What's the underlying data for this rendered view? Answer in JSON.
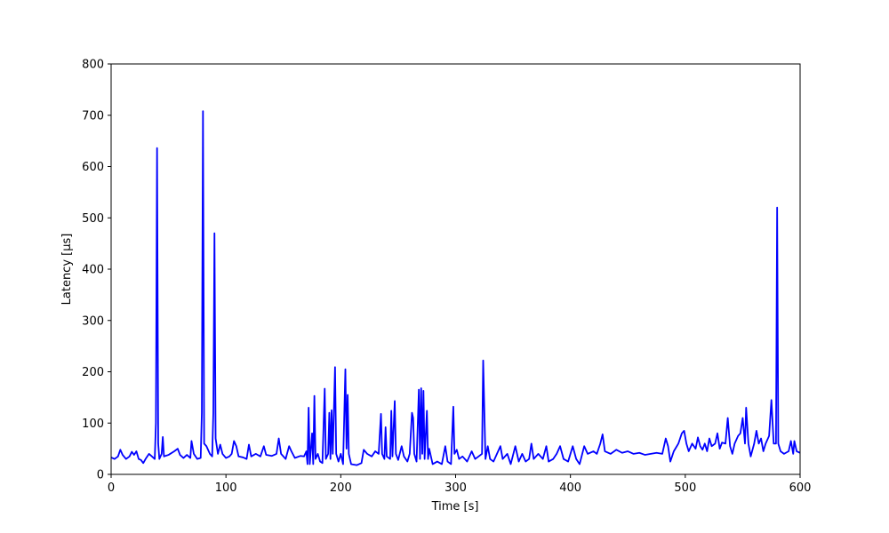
{
  "chart_data": {
    "type": "line",
    "xlabel": "Time [s]",
    "ylabel": "Latency [µs]",
    "color": "#0000ff",
    "xlim": [
      0,
      600
    ],
    "xticks": [
      0,
      100,
      200,
      300,
      400,
      500,
      600
    ],
    "ylim": [
      0,
      800
    ],
    "yticks": [
      0,
      100,
      200,
      300,
      400,
      500,
      600,
      700,
      800
    ],
    "grid": false,
    "x": [
      0,
      3,
      6,
      8,
      10,
      13,
      16,
      18,
      20,
      22,
      24,
      26,
      28,
      30,
      33,
      35,
      37,
      38,
      39,
      40,
      41,
      42,
      44,
      45,
      46,
      50,
      55,
      58,
      60,
      63,
      66,
      69,
      70,
      72,
      75,
      78,
      79,
      80,
      81,
      83,
      86,
      88,
      89,
      90,
      91,
      93,
      95,
      97,
      100,
      103,
      105,
      107,
      109,
      111,
      115,
      118,
      120,
      122,
      126,
      130,
      133,
      135,
      140,
      144,
      146,
      148,
      152,
      155,
      157,
      160,
      165,
      168,
      170,
      171,
      172,
      173,
      175,
      176,
      177,
      178,
      180,
      182,
      184,
      186,
      187,
      189,
      190,
      191,
      192,
      193,
      195,
      196,
      198,
      200,
      202,
      204,
      205,
      206,
      207,
      209,
      214,
      218,
      220,
      223,
      227,
      230,
      233,
      235,
      236,
      238,
      239,
      240,
      243,
      244,
      245,
      247,
      248,
      250,
      253,
      255,
      258,
      260,
      262,
      263,
      264,
      266,
      268,
      269,
      270,
      271,
      272,
      273,
      275,
      276,
      277,
      280,
      284,
      288,
      291,
      293,
      296,
      298,
      299,
      301,
      303,
      306,
      310,
      314,
      317,
      320,
      323,
      324,
      326,
      328,
      330,
      333,
      336,
      339,
      341,
      345,
      348,
      352,
      355,
      358,
      361,
      364,
      366,
      368,
      372,
      376,
      379,
      381,
      385,
      388,
      391,
      394,
      398,
      402,
      405,
      408,
      412,
      415,
      420,
      423,
      426,
      428,
      430,
      435,
      440,
      445,
      450,
      455,
      460,
      465,
      470,
      475,
      480,
      483,
      485,
      487,
      490,
      494,
      497,
      499,
      501,
      503,
      506,
      509,
      511,
      513,
      515,
      517,
      519,
      521,
      523,
      526,
      528,
      530,
      532,
      535,
      537,
      539,
      541,
      543,
      546,
      548,
      550,
      552,
      553,
      555,
      557,
      560,
      562,
      564,
      566,
      568,
      570,
      573,
      575,
      577,
      579,
      580,
      581,
      583,
      586,
      590,
      592,
      594,
      595,
      597,
      600
    ],
    "values": [
      33,
      30,
      35,
      48,
      38,
      30,
      35,
      44,
      38,
      45,
      30,
      28,
      22,
      30,
      40,
      36,
      32,
      30,
      100,
      636,
      60,
      30,
      40,
      73,
      35,
      38,
      45,
      50,
      38,
      32,
      38,
      32,
      65,
      40,
      30,
      32,
      120,
      708,
      60,
      55,
      40,
      35,
      120,
      470,
      70,
      40,
      58,
      40,
      32,
      35,
      40,
      65,
      55,
      35,
      33,
      30,
      58,
      35,
      40,
      35,
      55,
      38,
      36,
      40,
      70,
      40,
      30,
      55,
      45,
      32,
      36,
      35,
      45,
      20,
      130,
      20,
      80,
      20,
      153,
      30,
      40,
      25,
      22,
      167,
      30,
      40,
      120,
      30,
      125,
      40,
      209,
      40,
      25,
      40,
      20,
      205,
      50,
      155,
      40,
      20,
      18,
      22,
      48,
      40,
      35,
      45,
      40,
      118,
      40,
      30,
      92,
      35,
      30,
      124,
      35,
      143,
      40,
      28,
      55,
      35,
      25,
      40,
      120,
      110,
      40,
      25,
      165,
      30,
      168,
      40,
      163,
      30,
      124,
      30,
      50,
      20,
      25,
      20,
      55,
      25,
      20,
      132,
      40,
      48,
      30,
      35,
      25,
      45,
      30,
      35,
      40,
      222,
      30,
      55,
      30,
      25,
      40,
      55,
      30,
      40,
      20,
      55,
      25,
      40,
      25,
      30,
      60,
      30,
      40,
      30,
      55,
      25,
      30,
      40,
      55,
      30,
      25,
      55,
      30,
      20,
      55,
      40,
      45,
      40,
      60,
      78,
      45,
      40,
      48,
      42,
      45,
      40,
      42,
      38,
      40,
      42,
      40,
      70,
      55,
      25,
      45,
      60,
      80,
      85,
      60,
      45,
      60,
      50,
      72,
      55,
      48,
      60,
      45,
      70,
      55,
      60,
      80,
      50,
      62,
      60,
      110,
      55,
      40,
      60,
      75,
      80,
      110,
      60,
      130,
      60,
      35,
      60,
      85,
      60,
      70,
      45,
      60,
      75,
      145,
      60,
      60,
      520,
      60,
      45,
      40,
      45,
      65,
      40,
      65,
      45,
      42
    ]
  }
}
